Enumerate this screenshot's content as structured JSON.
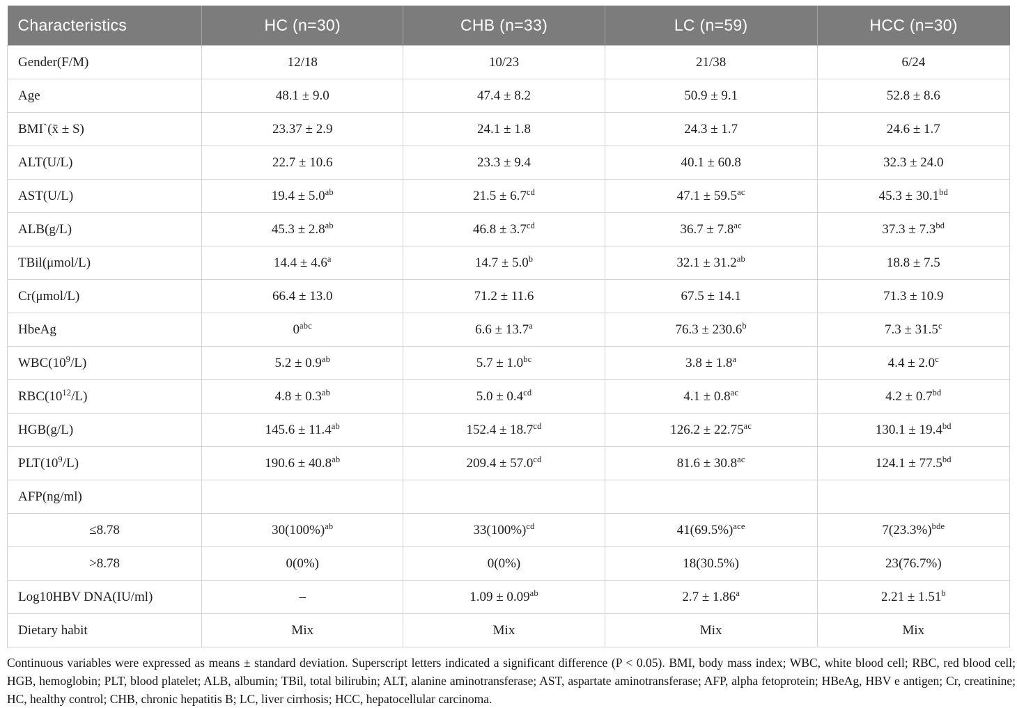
{
  "table": {
    "columns": [
      "Characteristics",
      "HC (n=30)",
      "CHB (n=33)",
      "LC (n=59)",
      "HCC (n=30)"
    ],
    "rows": [
      {
        "label": "Gender(F/M)",
        "cells": [
          "12/18",
          "10/23",
          "21/38",
          "6/24"
        ]
      },
      {
        "label": "Age",
        "cells": [
          "48.1 ± 9.0",
          "47.4 ± 8.2",
          "50.9 ± 9.1",
          "52.8 ± 8.6"
        ]
      },
      {
        "label": "BMI`(x̄ ± S)",
        "cells": [
          "23.37 ± 2.9",
          "24.1 ± 1.8",
          "24.3 ± 1.7",
          "24.6 ± 1.7"
        ]
      },
      {
        "label": "ALT(U/L)",
        "cells": [
          "22.7 ± 10.6",
          "23.3 ± 9.4",
          "40.1 ± 60.8",
          "32.3 ± 24.0"
        ]
      },
      {
        "label": "AST(U/L)",
        "cells": [
          "19.4 ± 5.0^ab",
          "21.5 ± 6.7^cd",
          "47.1 ± 59.5^ac",
          "45.3 ± 30.1^bd"
        ]
      },
      {
        "label": "ALB(g/L)",
        "cells": [
          "45.3 ± 2.8^ab",
          "46.8 ± 3.7^cd",
          "36.7 ± 7.8^ac",
          "37.3 ± 7.3^bd"
        ]
      },
      {
        "label": "TBil(μmol/L)",
        "cells": [
          "14.4 ± 4.6^a",
          "14.7 ± 5.0^b",
          "32.1 ± 31.2^ab",
          "18.8 ± 7.5"
        ]
      },
      {
        "label": "Cr(μmol/L)",
        "cells": [
          "66.4 ± 13.0",
          "71.2 ± 11.6",
          "67.5 ± 14.1",
          "71.3 ± 10.9"
        ]
      },
      {
        "label": "HbeAg",
        "cells": [
          "0^abc",
          "6.6 ± 13.7^a",
          "76.3 ± 230.6^b",
          "7.3 ± 31.5^c"
        ]
      },
      {
        "label": "WBC(10^9^/L)",
        "cells": [
          "5.2 ± 0.9^ab",
          "5.7 ± 1.0^bc",
          "3.8 ± 1.8^a",
          "4.4 ± 2.0^c"
        ]
      },
      {
        "label": "RBC(10^12^/L)",
        "cells": [
          "4.8 ± 0.3^ab",
          "5.0 ± 0.4^cd",
          "4.1 ± 0.8^ac",
          "4.2 ± 0.7^bd"
        ]
      },
      {
        "label": "HGB(g/L)",
        "cells": [
          "145.6 ± 11.4^ab",
          "152.4 ± 18.7^cd",
          "126.2 ± 22.75^ac",
          "130.1 ± 19.4^bd"
        ]
      },
      {
        "label": "PLT(10^9^/L)",
        "cells": [
          "190.6 ± 40.8^ab",
          "209.4 ± 57.0^cd",
          "81.6 ± 30.8^ac",
          "124.1 ± 77.5^bd"
        ]
      },
      {
        "label": "AFP(ng/ml)",
        "cells": [
          "",
          "",
          "",
          ""
        ]
      },
      {
        "label": "≤8.78",
        "indent": true,
        "cells": [
          "30(100%)^ab",
          "33(100%)^cd",
          "41(69.5%)^ace",
          "7(23.3%)^bde"
        ]
      },
      {
        "label": ">8.78",
        "indent": true,
        "cells": [
          "0(0%)",
          "0(0%)",
          "18(30.5%)",
          "23(76.7%)"
        ]
      },
      {
        "label": "Log10HBV DNA(IU/ml)",
        "cells": [
          "–",
          "1.09 ± 0.09^ab",
          "2.7 ± 1.86^a",
          "2.21 ± 1.51^b"
        ]
      },
      {
        "label": "Dietary habit",
        "cells": [
          "Mix",
          "Mix",
          "Mix",
          "Mix"
        ]
      }
    ]
  },
  "footnote": "Continuous variables were expressed as means ± standard deviation. Superscript letters indicated a significant difference (P < 0.05). BMI, body mass index; WBC, white blood cell; RBC, red blood cell; HGB, hemoglobin; PLT, blood platelet; ALB, albumin; TBil, total bilirubin; ALT, alanine aminotransferase; AST, aspartate aminotransferase; AFP, alpha fetoprotein; HBeAg, HBV e antigen; Cr, creatinine; HC, healthy control; CHB, chronic hepatitis B; LC, liver cirrhosis; HCC, hepatocellular carcinoma.",
  "colors": {
    "header_bg": "#7c7c7c",
    "header_text": "#ffffff",
    "border": "#d2d2d2",
    "body_text": "#1e1e1e"
  }
}
